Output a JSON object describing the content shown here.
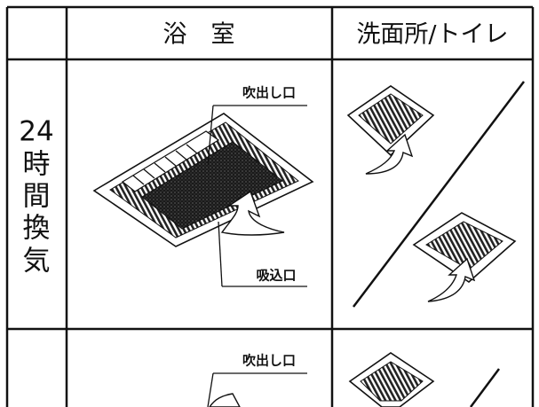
{
  "table": {
    "header": {
      "bath": "浴　室",
      "washroom": "洗面所/トイレ"
    },
    "rows": [
      {
        "label": [
          "24",
          "時",
          "間",
          "換",
          "気"
        ],
        "callouts": [
          "吹出し口",
          "吸込口"
        ]
      },
      {
        "callouts": [
          "吹出し口"
        ]
      }
    ]
  }
}
